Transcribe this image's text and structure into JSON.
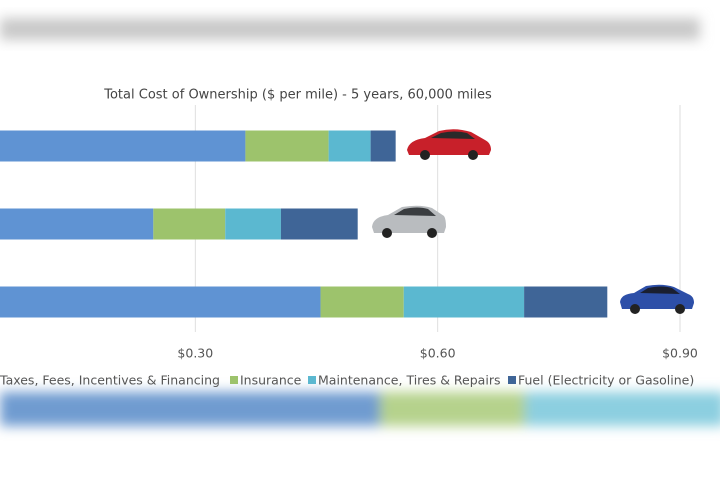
{
  "chart_data": {
    "type": "stacked-bar-horizontal",
    "title": "Total Cost of Ownership ($ per mile) - 5 years, 60,000 miles",
    "categories": [
      null,
      null,
      null
    ],
    "series": [
      {
        "name": "Taxes, Fees, Incentives & Financing",
        "color": "#5f93d3",
        "values": [
          0.362,
          0.248,
          0.455
        ]
      },
      {
        "name": "Insurance",
        "color": "#9dc36c",
        "values": [
          0.103,
          0.089,
          0.103
        ]
      },
      {
        "name": "Maintenance, Tires & Repairs",
        "color": "#5bb8d0",
        "values": [
          0.052,
          0.069,
          0.149
        ]
      },
      {
        "name": "Fuel (Electricity or Gasoline)",
        "color": "#3f6597",
        "values": [
          0.031,
          0.095,
          0.103
        ]
      }
    ],
    "xlim": [
      0,
      0.9
    ],
    "xticks": [
      {
        "value": 0.3,
        "label": "$0.30"
      },
      {
        "value": 0.6,
        "label": "$0.60"
      },
      {
        "value": 0.9,
        "label": "$0.90"
      }
    ],
    "grid": true,
    "legend": "bottom"
  }
}
